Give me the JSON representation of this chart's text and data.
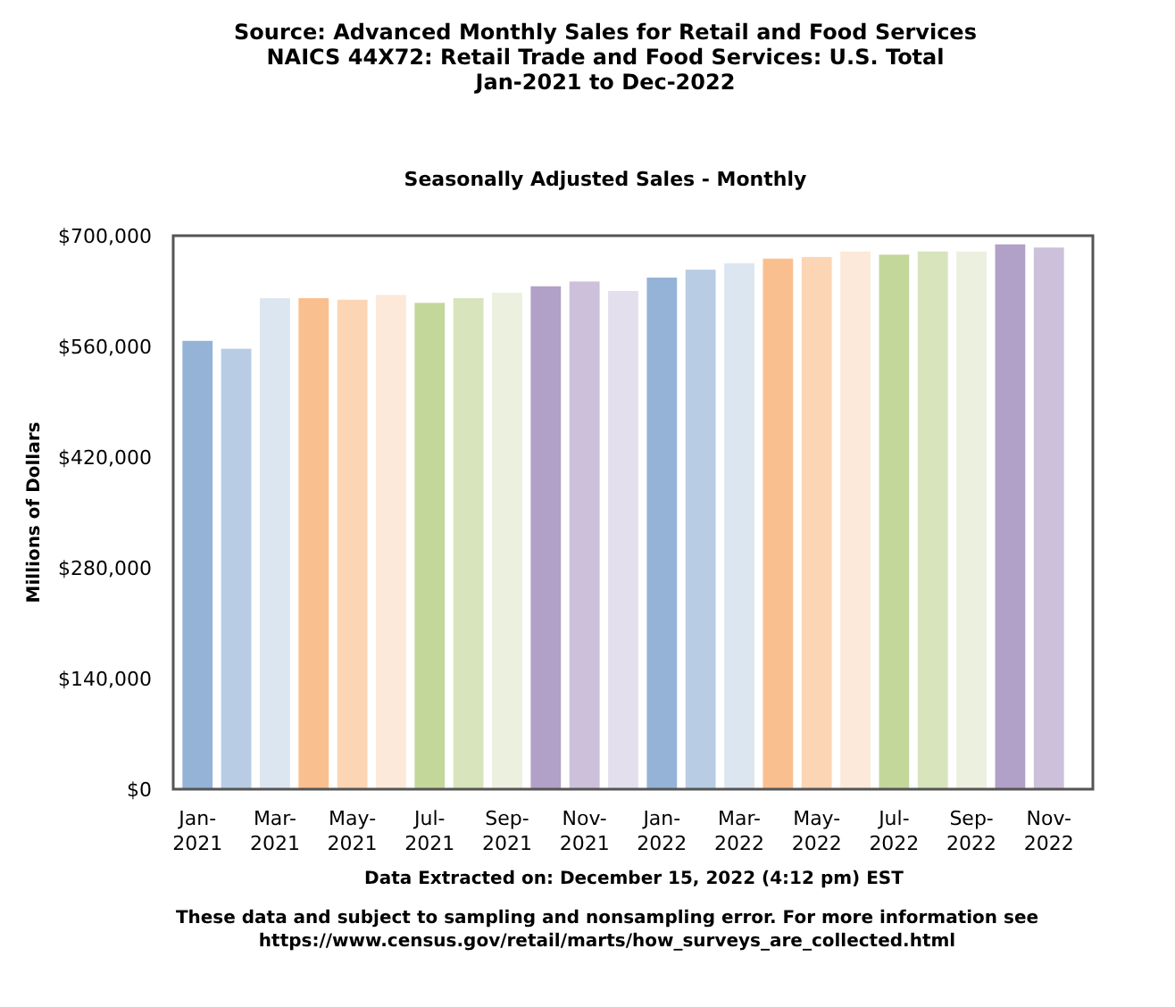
{
  "chart_data": {
    "type": "bar",
    "title": "Source: Advanced Monthly Sales for Retail and Food Services\nNAICS 44X72: Retail Trade and Food Services: U.S. Total\nJan-2021 to Dec-2022",
    "subtitle": "Seasonally Adjusted Sales - Monthly",
    "ylabel": "Millions of Dollars",
    "categories": [
      "Jan-2021",
      null,
      "Mar-2021",
      null,
      "May-2021",
      null,
      "Jul-2021",
      null,
      "Sep-2021",
      null,
      "Nov-2021",
      null,
      "Jan-2022",
      null,
      "Mar-2022",
      null,
      "May-2022",
      null,
      "Jul-2022",
      null,
      "Sep-2022",
      null,
      "Nov-2022"
    ],
    "values": [
      567000,
      557000,
      621000,
      621000,
      619000,
      625000,
      615000,
      621000,
      628000,
      636000,
      642000,
      630000,
      647000,
      657000,
      665000,
      671000,
      673000,
      680000,
      676000,
      680000,
      680000,
      689000,
      685000
    ],
    "colors": [
      "#95b3d7",
      "#b8cce4",
      "#dce6f1",
      "#fabf8f",
      "#fcd5b4",
      "#fde9d9",
      "#c4d79b",
      "#d8e4bc",
      "#ebf1de",
      "#b1a0c7",
      "#ccc0da",
      "#e4dfec",
      "#95b3d7",
      "#b8cce4",
      "#dce6f1",
      "#fabf8f",
      "#fcd5b4",
      "#fde9d9",
      "#c4d79b",
      "#d8e4bc",
      "#ebf1de",
      "#b1a0c7",
      "#ccc0da"
    ],
    "ylim": [
      0,
      700000
    ],
    "yticks": [
      {
        "value": 0,
        "label": "$0"
      },
      {
        "value": 140000,
        "label": "$140,000"
      },
      {
        "value": 280000,
        "label": "$280,000"
      },
      {
        "value": 420000,
        "label": "$420,000"
      },
      {
        "value": 560000,
        "label": "$560,000"
      },
      {
        "value": 700000,
        "label": "$700,000"
      }
    ],
    "grid": false,
    "annotations": [
      "Data Extracted on: December 15, 2022 (4:12 pm) EST",
      "These data and subject to sampling and nonsampling error. For more information see\nhttps://www.census.gov/retail/marts/how_surveys_are_collected.html"
    ]
  }
}
